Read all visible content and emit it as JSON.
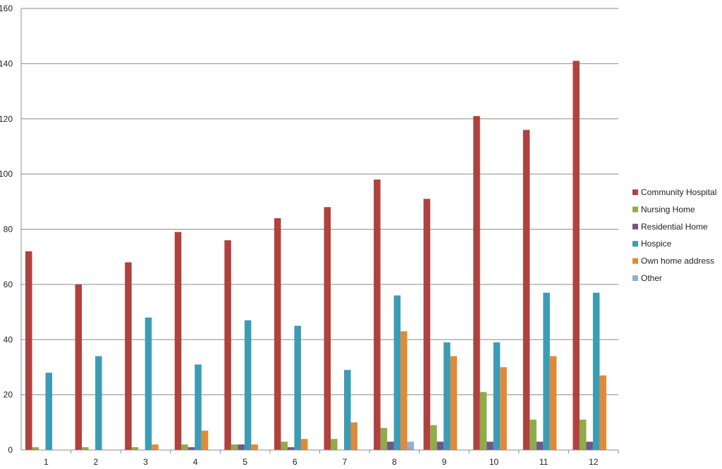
{
  "chart_data": {
    "type": "bar",
    "title": "",
    "xlabel": "",
    "ylabel": "",
    "ylim": [
      0,
      160
    ],
    "yticks": [
      "0",
      "20",
      "40",
      "60",
      "80",
      "100",
      "120",
      "140",
      "160"
    ],
    "grid": true,
    "legend_position": "right",
    "categories": [
      "1",
      "2",
      "3",
      "4",
      "5",
      "6",
      "7",
      "8",
      "9",
      "10",
      "11",
      "12"
    ],
    "series": [
      {
        "name": "Community Hospital",
        "color": "#b0413e",
        "values": [
          72,
          60,
          68,
          79,
          76,
          84,
          88,
          98,
          91,
          121,
          116,
          141
        ]
      },
      {
        "name": "Nursing Home",
        "color": "#8eac48",
        "values": [
          1,
          1,
          1,
          2,
          2,
          3,
          4,
          8,
          9,
          21,
          11,
          11
        ]
      },
      {
        "name": "Residential Home",
        "color": "#6e558e",
        "values": [
          0,
          0,
          0,
          1,
          2,
          1,
          0,
          3,
          3,
          3,
          3,
          3
        ]
      },
      {
        "name": "Hospice",
        "color": "#3c9cb3",
        "values": [
          28,
          34,
          48,
          31,
          47,
          45,
          29,
          56,
          39,
          39,
          57,
          57
        ]
      },
      {
        "name": "Own home address",
        "color": "#e08a38",
        "values": [
          0,
          0,
          2,
          7,
          2,
          4,
          10,
          43,
          34,
          30,
          34,
          27
        ]
      },
      {
        "name": "Other",
        "color": "#93add3",
        "values": [
          0,
          0,
          0,
          0,
          0,
          0,
          0,
          3,
          0,
          0,
          0,
          0
        ]
      }
    ]
  }
}
